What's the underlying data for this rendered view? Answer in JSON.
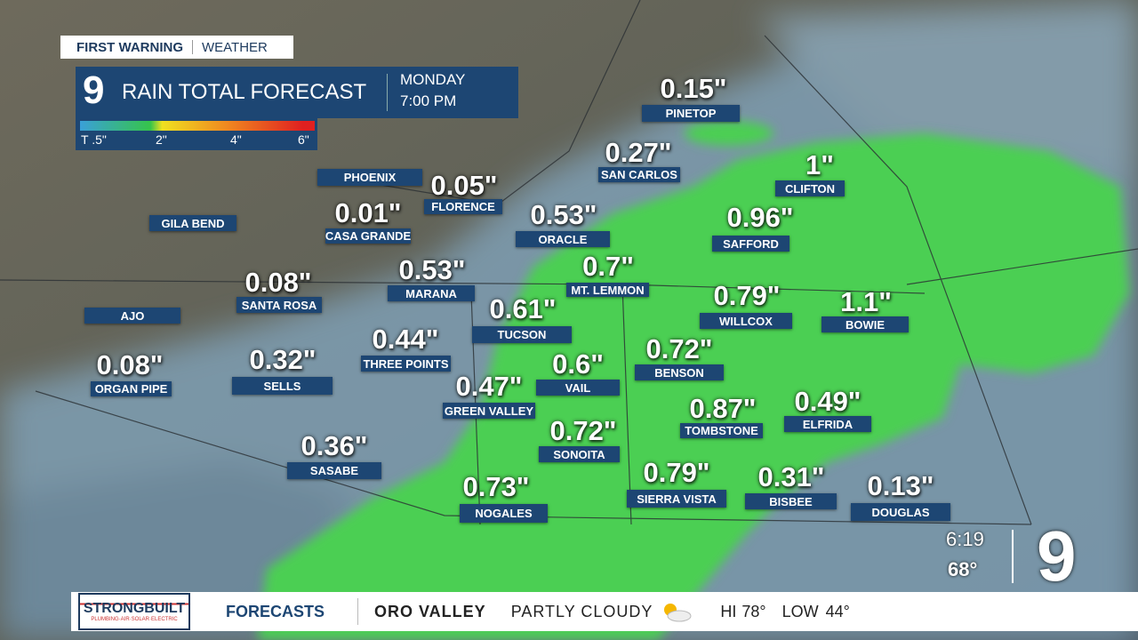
{
  "header": {
    "brand": "FIRST WARNING",
    "section": "WEATHER"
  },
  "title_box": {
    "logo": "9",
    "title": "RAIN TOTAL FORECAST",
    "day": "MONDAY",
    "time": "7:00 PM"
  },
  "legend": {
    "labels": [
      "T .5\"",
      "2\"",
      "4\"",
      "6\""
    ]
  },
  "cities": [
    {
      "name": "PINETOP",
      "amount": "0.15\""
    },
    {
      "name": "SAN CARLOS",
      "amount": "0.27\""
    },
    {
      "name": "CLIFTON",
      "amount": "1\""
    },
    {
      "name": "PHOENIX"
    },
    {
      "name": "FLORENCE",
      "amount": "0.05\""
    },
    {
      "name": "GILA BEND"
    },
    {
      "name": "CASA GRANDE",
      "amount": "0.01\""
    },
    {
      "name": "ORACLE",
      "amount": "0.53\""
    },
    {
      "name": "SAFFORD",
      "amount": "0.96\""
    },
    {
      "name": "MARANA",
      "amount": "0.53\""
    },
    {
      "name": "MT. LEMMON",
      "amount": "0.7\""
    },
    {
      "name": "SANTA ROSA",
      "amount": "0.08\""
    },
    {
      "name": "WILLCOX",
      "amount": "0.79\""
    },
    {
      "name": "BOWIE",
      "amount": "1.1\""
    },
    {
      "name": "AJO"
    },
    {
      "name": "TUCSON",
      "amount": "0.61\""
    },
    {
      "name": "THREE POINTS",
      "amount": "0.44\""
    },
    {
      "name": "BENSON",
      "amount": "0.72\""
    },
    {
      "name": "ORGAN PIPE",
      "amount": "0.08\""
    },
    {
      "name": "SELLS",
      "amount": "0.32\""
    },
    {
      "name": "VAIL",
      "amount": "0.6\""
    },
    {
      "name": "GREEN VALLEY",
      "amount": "0.47\""
    },
    {
      "name": "TOMBSTONE",
      "amount": "0.87\""
    },
    {
      "name": "ELFRIDA",
      "amount": "0.49\""
    },
    {
      "name": "SONOITA",
      "amount": "0.72\""
    },
    {
      "name": "SASABE",
      "amount": "0.36\""
    },
    {
      "name": "SIERRA VISTA",
      "amount": "0.79\""
    },
    {
      "name": "BISBEE",
      "amount": "0.31\""
    },
    {
      "name": "DOUGLAS",
      "amount": "0.13\""
    },
    {
      "name": "NOGALES",
      "amount": "0.73\""
    }
  ],
  "corner": {
    "time": "6:19",
    "temp": "68°",
    "logo": "9"
  },
  "ticker": {
    "sponsor": "STRONGBUILT",
    "sponsor_tagline": "PLUMBING·AIR·SOLAR·ELECTRIC",
    "segment": "FORECASTS",
    "location": "ORO VALLEY",
    "condition": "PARTLY CLOUDY",
    "hi_label": "HI",
    "hi": "78°",
    "low_label": "LOW",
    "low": "44°"
  }
}
